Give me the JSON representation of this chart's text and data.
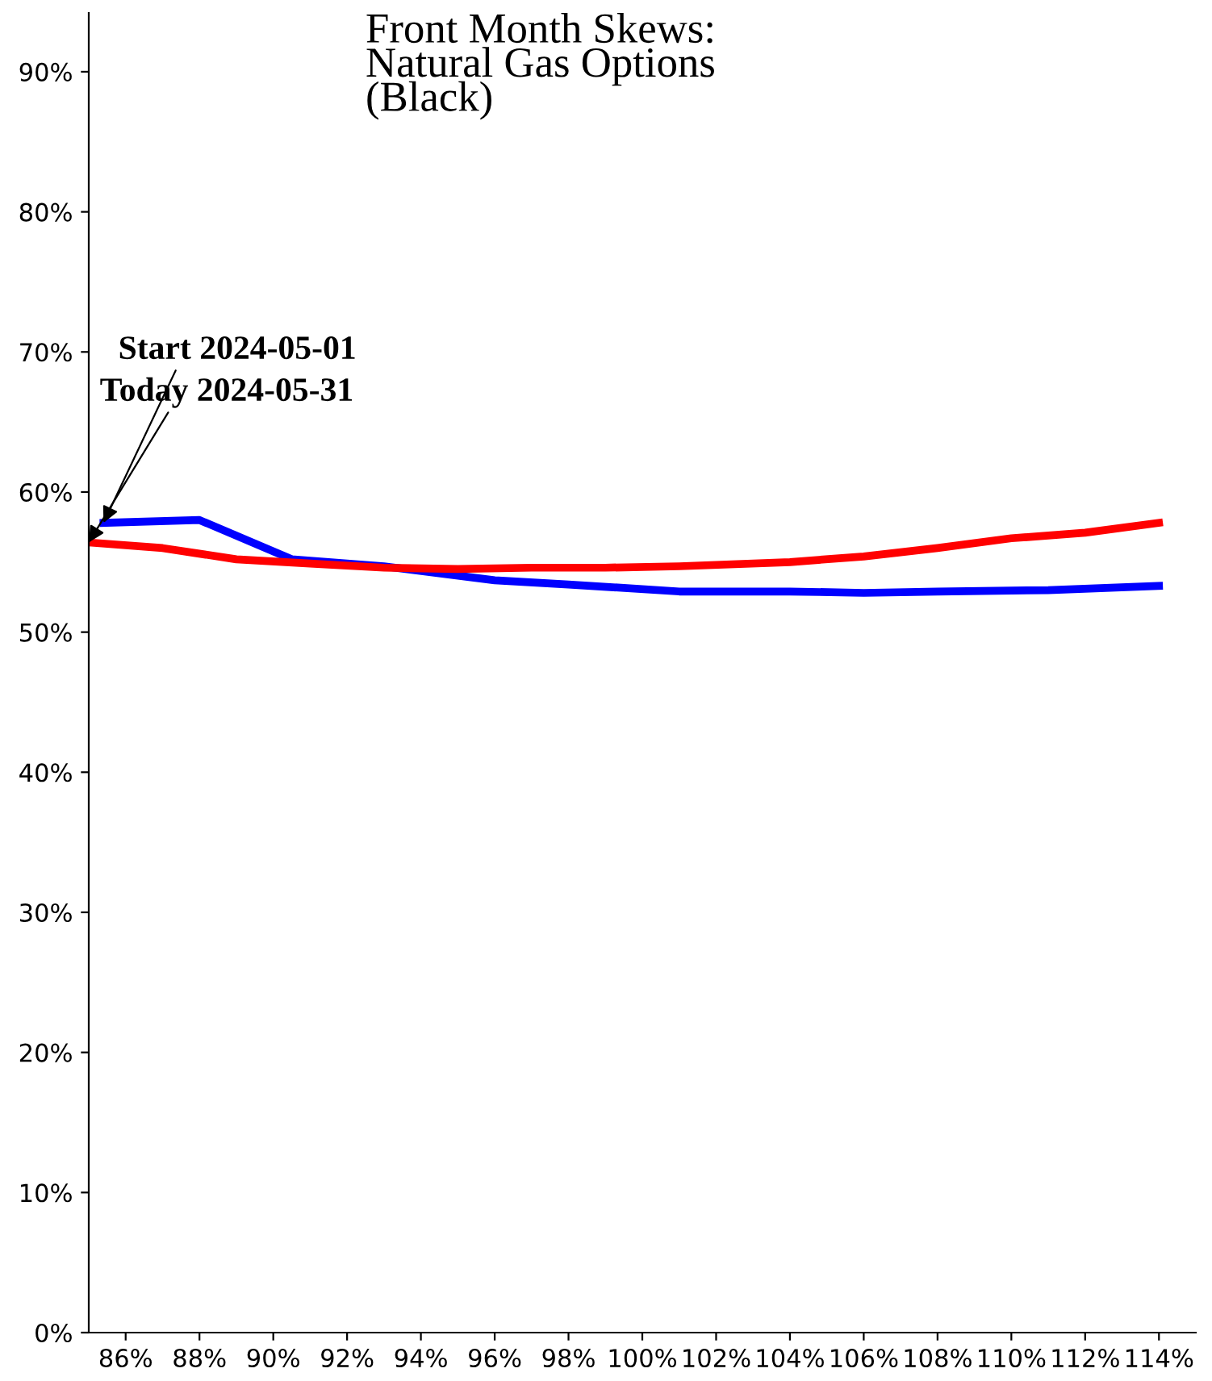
{
  "chart_data": {
    "type": "line",
    "title": "Front Month Skews:\nNatural Gas Options\n(Black)",
    "xlim": [
      85,
      115
    ],
    "ylim": [
      0,
      94.2
    ],
    "xticks": [
      {
        "value": 86,
        "label": "86%"
      },
      {
        "value": 88,
        "label": "88%"
      },
      {
        "value": 90,
        "label": "90%"
      },
      {
        "value": 92,
        "label": "92%"
      },
      {
        "value": 94,
        "label": "94%"
      },
      {
        "value": 96,
        "label": "96%"
      },
      {
        "value": 98,
        "label": "98%"
      },
      {
        "value": 100,
        "label": "100%"
      },
      {
        "value": 102,
        "label": "102%"
      },
      {
        "value": 104,
        "label": "104%"
      },
      {
        "value": 106,
        "label": "106%"
      },
      {
        "value": 108,
        "label": "108%"
      },
      {
        "value": 110,
        "label": "110%"
      },
      {
        "value": 112,
        "label": "112%"
      },
      {
        "value": 114,
        "label": "114%"
      }
    ],
    "yticks": [
      {
        "value": 0,
        "label": "0%"
      },
      {
        "value": 10,
        "label": "10%"
      },
      {
        "value": 20,
        "label": "20%"
      },
      {
        "value": 30,
        "label": "30%"
      },
      {
        "value": 40,
        "label": "40%"
      },
      {
        "value": 50,
        "label": "50%"
      },
      {
        "value": 60,
        "label": "60%"
      },
      {
        "value": 70,
        "label": "70%"
      },
      {
        "value": 80,
        "label": "80%"
      },
      {
        "value": 90,
        "label": "90%"
      }
    ],
    "grid": false,
    "legend": false,
    "marker": "none",
    "line_style": "solid",
    "series": [
      {
        "color": "#0000ff",
        "x": [
          85.4,
          88,
          90.5,
          93,
          96,
          98,
          101,
          104,
          106,
          108,
          111,
          114
        ],
        "values": [
          57.8,
          58.0,
          55.2,
          54.7,
          53.7,
          53.4,
          52.9,
          52.9,
          52.8,
          52.9,
          53.0,
          53.3
        ]
      },
      {
        "color": "#ff0000",
        "x": [
          85,
          87,
          89,
          91,
          93,
          95,
          97,
          99,
          101,
          104,
          106,
          108,
          110,
          112,
          114
        ],
        "values": [
          56.4,
          56.0,
          55.2,
          54.9,
          54.6,
          54.5,
          54.6,
          54.6,
          54.7,
          55.0,
          55.4,
          56.0,
          56.7,
          57.1,
          57.8
        ]
      }
    ],
    "annotations": [
      {
        "text": "Start 2024-05-01",
        "x": 85.4,
        "y": 57.8
      },
      {
        "text": "Today 2024-05-31",
        "x": 85,
        "y": 56.4
      }
    ]
  }
}
